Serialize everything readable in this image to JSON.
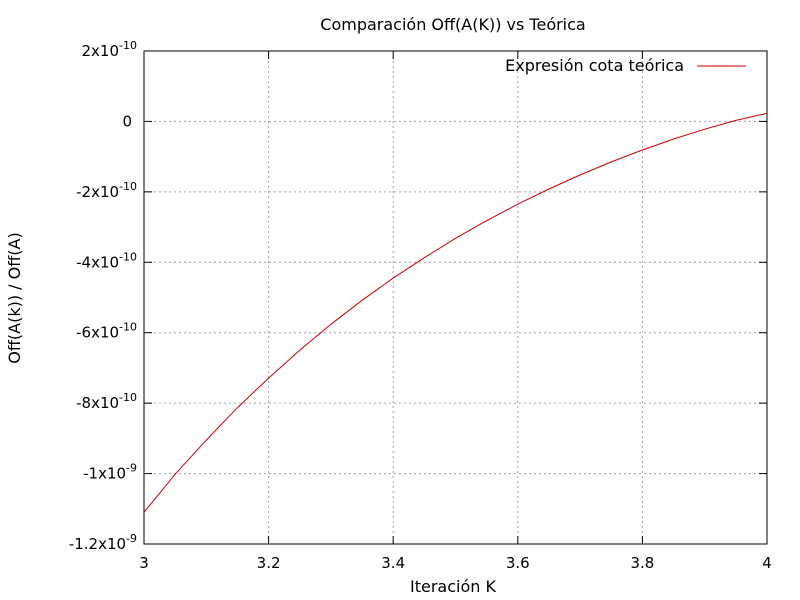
{
  "chart_data": {
    "type": "line",
    "title": "Comparación Off(A(K)) vs Teórica",
    "xlabel": "Iteración K",
    "ylabel": "Off(A(k)) / Off(A)",
    "xlim": [
      3,
      4
    ],
    "ylim": [
      -1.2e-09,
      2e-10
    ],
    "grid": true,
    "legend_position": "top-right",
    "x_ticks": [
      {
        "value": 3,
        "label": "3"
      },
      {
        "value": 3.2,
        "label": "3.2"
      },
      {
        "value": 3.4,
        "label": "3.4"
      },
      {
        "value": 3.6,
        "label": "3.6"
      },
      {
        "value": 3.8,
        "label": "3.8"
      },
      {
        "value": 4,
        "label": "4"
      }
    ],
    "y_ticks": [
      {
        "value": 2e-10,
        "mantissa": "2x10",
        "exp": "-10"
      },
      {
        "value": 0,
        "mantissa": "0",
        "exp": ""
      },
      {
        "value": -2e-10,
        "mantissa": "-2x10",
        "exp": "-10"
      },
      {
        "value": -4e-10,
        "mantissa": "-4x10",
        "exp": "-10"
      },
      {
        "value": -6e-10,
        "mantissa": "-6x10",
        "exp": "-10"
      },
      {
        "value": -8e-10,
        "mantissa": "-8x10",
        "exp": "-10"
      },
      {
        "value": -1e-09,
        "mantissa": "-1x10",
        "exp": "-9"
      },
      {
        "value": -1.2e-09,
        "mantissa": "-1.2x10",
        "exp": "-9"
      }
    ],
    "series": [
      {
        "name": "Expresión cota teórica",
        "color": "#cc0000",
        "x": [
          3.0,
          3.05,
          3.1,
          3.15,
          3.2,
          3.25,
          3.3,
          3.35,
          3.4,
          3.45,
          3.5,
          3.55,
          3.6,
          3.65,
          3.7,
          3.75,
          3.8,
          3.85,
          3.9,
          3.95,
          4.0
        ],
        "y": [
          -1.11e-09,
          -1.002e-09,
          -9.05e-10,
          -8.13e-10,
          -7.29e-10,
          -6.5e-10,
          -5.76e-10,
          -5.08e-10,
          -4.45e-10,
          -3.87e-10,
          -3.32e-10,
          -2.82e-10,
          -2.35e-10,
          -1.92e-10,
          -1.52e-10,
          -1.15e-10,
          -8.1e-11,
          -5e-11,
          -2.2e-11,
          3e-12,
          2.3e-11
        ]
      }
    ]
  }
}
